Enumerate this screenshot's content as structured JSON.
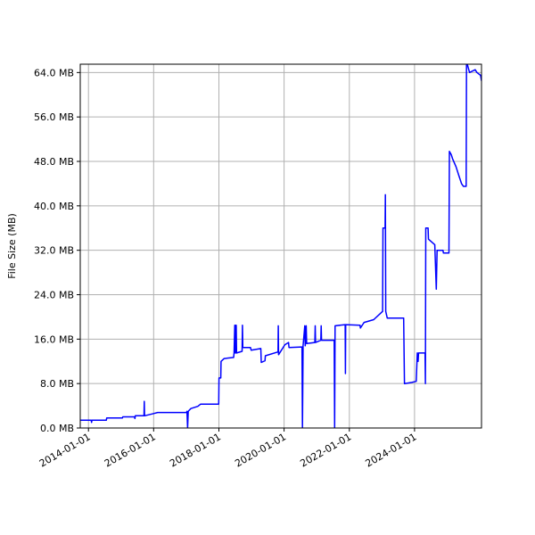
{
  "chart_data": {
    "type": "line",
    "title": "",
    "xlabel": "",
    "ylabel": "File Size (MB)",
    "xlim": [
      "2013-10-01",
      "2026-01-20"
    ],
    "ylim": [
      0,
      65.5
    ],
    "grid": true,
    "legend": "none",
    "line_color": "#0000ff",
    "grid_color": "#b0b0b0",
    "x_ticks": [
      {
        "date": "2014-01-01",
        "label": "2014-01-01"
      },
      {
        "date": "2016-01-01",
        "label": "2016-01-01"
      },
      {
        "date": "2018-01-01",
        "label": "2018-01-01"
      },
      {
        "date": "2020-01-01",
        "label": "2020-01-01"
      },
      {
        "date": "2022-01-01",
        "label": "2022-01-01"
      },
      {
        "date": "2024-01-01",
        "label": "2024-01-01"
      }
    ],
    "y_ticks": [
      {
        "value": 0,
        "label": "0.0 MB"
      },
      {
        "value": 8,
        "label": "8.0 MB"
      },
      {
        "value": 16,
        "label": "16.0 MB"
      },
      {
        "value": 24,
        "label": "24.0 MB"
      },
      {
        "value": 32,
        "label": "32.0 MB"
      },
      {
        "value": 40,
        "label": "40.0 MB"
      },
      {
        "value": 48,
        "label": "48.0 MB"
      },
      {
        "value": 56,
        "label": "56.0 MB"
      },
      {
        "value": 64,
        "label": "64.0 MB"
      }
    ],
    "series": [
      {
        "points": [
          [
            "2013-10-01",
            1.4
          ],
          [
            "2014-02-01",
            1.4
          ],
          [
            "2014-02-05",
            1.0
          ],
          [
            "2014-02-09",
            1.4
          ],
          [
            "2014-07-20",
            1.4
          ],
          [
            "2014-07-25",
            1.8
          ],
          [
            "2015-01-15",
            1.8
          ],
          [
            "2015-01-20",
            2.0
          ],
          [
            "2015-06-01",
            2.0
          ],
          [
            "2015-06-05",
            1.7
          ],
          [
            "2015-06-10",
            2.2
          ],
          [
            "2015-09-15",
            2.2
          ],
          [
            "2015-09-18",
            4.8
          ],
          [
            "2015-09-21",
            2.2
          ],
          [
            "2016-01-01",
            2.6
          ],
          [
            "2016-02-15",
            2.8
          ],
          [
            "2016-10-01",
            2.8
          ],
          [
            "2017-01-01",
            2.8
          ],
          [
            "2017-01-08",
            3.0
          ],
          [
            "2017-01-15",
            0.0
          ],
          [
            "2017-01-22",
            3.0
          ],
          [
            "2017-02-20",
            3.5
          ],
          [
            "2017-05-10",
            3.9
          ],
          [
            "2017-06-10",
            4.3
          ],
          [
            "2017-12-30",
            4.3
          ],
          [
            "2018-01-02",
            9.0
          ],
          [
            "2018-01-22",
            9.0
          ],
          [
            "2018-01-25",
            12.0
          ],
          [
            "2018-03-01",
            12.5
          ],
          [
            "2018-06-15",
            12.7
          ],
          [
            "2018-06-20",
            13.5
          ],
          [
            "2018-06-28",
            18.5
          ],
          [
            "2018-07-02",
            13.5
          ],
          [
            "2018-07-06",
            18.5
          ],
          [
            "2018-07-10",
            13.5
          ],
          [
            "2018-07-14",
            18.5
          ],
          [
            "2018-07-18",
            13.5
          ],
          [
            "2018-09-18",
            13.8
          ],
          [
            "2018-09-22",
            18.5
          ],
          [
            "2018-09-26",
            14.5
          ],
          [
            "2018-12-20",
            14.5
          ],
          [
            "2018-12-28",
            14.0
          ],
          [
            "2019-04-15",
            14.3
          ],
          [
            "2019-04-20",
            11.8
          ],
          [
            "2019-06-01",
            12.1
          ],
          [
            "2019-06-05",
            13.0
          ],
          [
            "2019-10-25",
            13.7
          ],
          [
            "2019-10-28",
            18.4
          ],
          [
            "2019-10-31",
            13.2
          ],
          [
            "2020-01-10",
            15.0
          ],
          [
            "2020-02-20",
            15.4
          ],
          [
            "2020-02-25",
            14.5
          ],
          [
            "2020-07-20",
            14.6
          ],
          [
            "2020-07-25",
            0.0
          ],
          [
            "2020-08-01",
            14.8
          ],
          [
            "2020-08-20",
            18.4
          ],
          [
            "2020-08-25",
            14.8
          ],
          [
            "2020-09-05",
            18.4
          ],
          [
            "2020-09-10",
            15.2
          ],
          [
            "2020-12-10",
            15.4
          ],
          [
            "2020-12-14",
            18.4
          ],
          [
            "2020-12-18",
            15.4
          ],
          [
            "2021-02-15",
            15.8
          ],
          [
            "2021-02-19",
            18.4
          ],
          [
            "2021-02-23",
            15.8
          ],
          [
            "2021-07-15",
            15.8
          ],
          [
            "2021-07-20",
            0.0
          ],
          [
            "2021-07-25",
            18.4
          ],
          [
            "2021-11-15",
            18.6
          ],
          [
            "2021-11-18",
            9.8
          ],
          [
            "2021-11-21",
            18.6
          ],
          [
            "2022-05-01",
            18.5
          ],
          [
            "2022-05-05",
            18.0
          ],
          [
            "2022-06-15",
            19.0
          ],
          [
            "2022-10-01",
            19.5
          ],
          [
            "2023-01-08",
            21.0
          ],
          [
            "2023-01-12",
            36.0
          ],
          [
            "2023-02-05",
            36.0
          ],
          [
            "2023-02-08",
            42.0
          ],
          [
            "2023-02-12",
            21.0
          ],
          [
            "2023-03-01",
            19.8
          ],
          [
            "2023-09-01",
            19.8
          ],
          [
            "2023-09-10",
            8.0
          ],
          [
            "2023-12-01",
            8.2
          ],
          [
            "2024-01-20",
            8.4
          ],
          [
            "2024-02-01",
            13.5
          ],
          [
            "2024-02-10",
            12.0
          ],
          [
            "2024-02-15",
            13.5
          ],
          [
            "2024-04-28",
            13.5
          ],
          [
            "2024-05-02",
            8.0
          ],
          [
            "2024-05-06",
            36.0
          ],
          [
            "2024-06-01",
            36.0
          ],
          [
            "2024-06-05",
            34.0
          ],
          [
            "2024-08-15",
            33.0
          ],
          [
            "2024-09-01",
            25.0
          ],
          [
            "2024-09-10",
            32.0
          ],
          [
            "2024-11-15",
            32.0
          ],
          [
            "2024-11-20",
            31.5
          ],
          [
            "2025-01-20",
            31.5
          ],
          [
            "2025-01-25",
            49.8
          ],
          [
            "2025-02-15",
            49.2
          ],
          [
            "2025-03-01",
            48.5
          ],
          [
            "2025-04-10",
            47.0
          ],
          [
            "2025-05-10",
            45.5
          ],
          [
            "2025-06-10",
            44.0
          ],
          [
            "2025-07-01",
            43.5
          ],
          [
            "2025-08-01",
            43.5
          ],
          [
            "2025-08-05",
            66.0
          ],
          [
            "2025-09-08",
            64.0
          ],
          [
            "2025-11-10",
            64.5
          ],
          [
            "2025-11-30",
            64.0
          ],
          [
            "2026-01-10",
            63.5
          ],
          [
            "2026-01-20",
            62.5
          ]
        ]
      }
    ]
  }
}
